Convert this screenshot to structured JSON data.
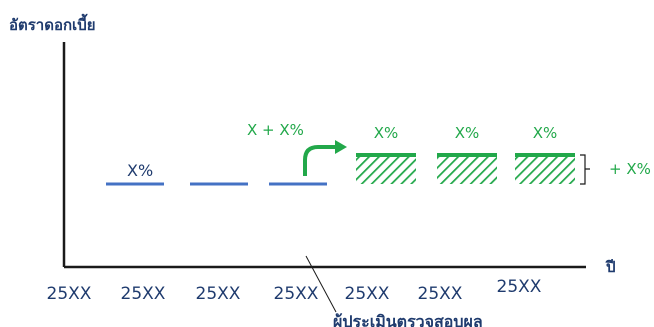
{
  "chart_data": {
    "type": "bar",
    "ylabel": "อัตราดอกเบี้ย",
    "xlabel": "ปี",
    "categories": [
      "25XX",
      "25XX",
      "25XX",
      "25XX",
      "25XX",
      "25XX",
      "25XX"
    ],
    "base_rate_label": "X%",
    "green_labels": [
      "X%",
      "X%",
      "X%"
    ],
    "increase_label": "X + X%",
    "bracket_label": "+ X%",
    "evaluation_label": "ผู้ประเมินตรวจสอบผล",
    "colors": {
      "base": "#4472c4",
      "increase": "#22a84a",
      "axis": "#1a1a1a",
      "text": "#1f3b6e"
    }
  }
}
